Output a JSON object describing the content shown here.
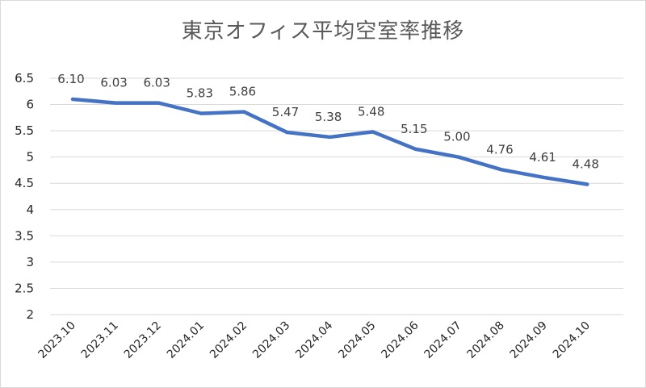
{
  "chart_data": {
    "type": "line",
    "title": "東京オフィス平均空室率推移",
    "xlabel": "",
    "ylabel": "",
    "ylim": [
      2,
      6.5
    ],
    "yticks": [
      "2",
      "2.5",
      "3",
      "3.5",
      "4",
      "4.5",
      "5",
      "5.5",
      "6",
      "6.5"
    ],
    "ytick_values": [
      2,
      2.5,
      3,
      3.5,
      4,
      4.5,
      5,
      5.5,
      6,
      6.5
    ],
    "grid": true,
    "legend": "none",
    "color": "#4472c4",
    "categories": [
      "2023.10",
      "2023.11",
      "2023.12",
      "2024.01",
      "2024.02",
      "2024.03",
      "2024.04",
      "2024.05",
      "2024.06",
      "2024.07",
      "2024.08",
      "2024.09",
      "2024.10"
    ],
    "values": [
      6.1,
      6.03,
      6.03,
      5.83,
      5.86,
      5.47,
      5.38,
      5.48,
      5.15,
      5.0,
      4.76,
      4.61,
      4.48
    ],
    "data_labels": [
      "6.10",
      "6.03",
      "6.03",
      "5.83",
      "5.86",
      "5.47",
      "5.38",
      "5.48",
      "5.15",
      "5.00",
      "4.76",
      "4.61",
      "4.48"
    ]
  }
}
